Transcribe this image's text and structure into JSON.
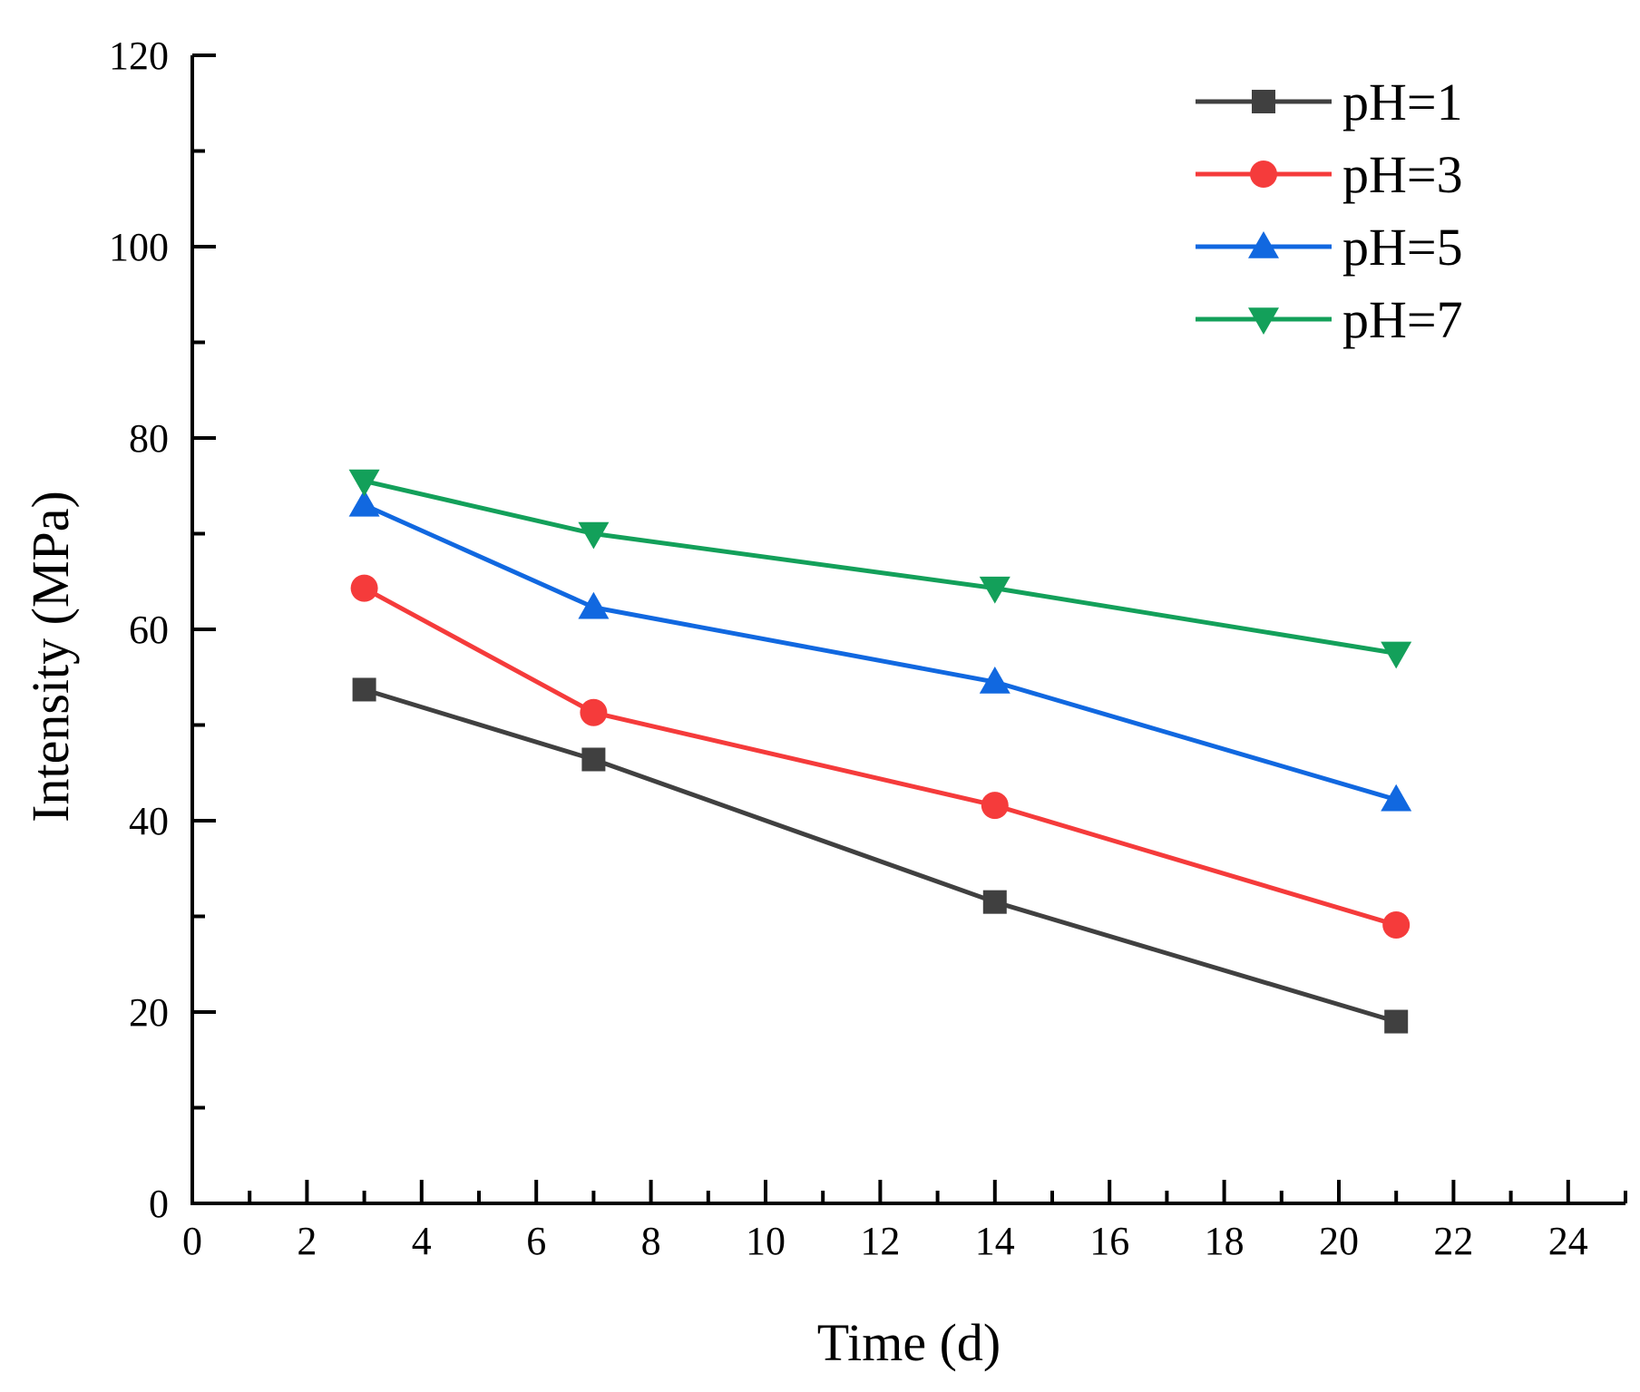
{
  "chart_data": {
    "type": "line",
    "title": "",
    "xlabel": "Time (d)",
    "ylabel": "Intensity (MPa)",
    "xlim": [
      0,
      25
    ],
    "ylim": [
      0,
      120
    ],
    "xticks": [
      0,
      2,
      4,
      6,
      8,
      10,
      12,
      14,
      16,
      18,
      20,
      22,
      24
    ],
    "yticks": [
      0,
      20,
      40,
      60,
      80,
      100,
      120
    ],
    "grid": false,
    "legend_position": "top-right",
    "x": [
      3,
      7,
      14,
      21
    ],
    "series": [
      {
        "name": "pH=1",
        "color": "#404040",
        "marker": "square",
        "values": [
          53.7,
          46.4,
          31.5,
          19.0
        ]
      },
      {
        "name": "pH=3",
        "color": "#f53b3b",
        "marker": "circle",
        "values": [
          64.3,
          51.3,
          41.6,
          29.1
        ]
      },
      {
        "name": "pH=5",
        "color": "#1168e0",
        "marker": "triangle-up",
        "values": [
          73.0,
          62.3,
          54.5,
          42.2
        ]
      },
      {
        "name": "pH=7",
        "color": "#13a05a",
        "marker": "triangle-down",
        "values": [
          75.5,
          70.0,
          64.3,
          57.5
        ]
      }
    ]
  }
}
